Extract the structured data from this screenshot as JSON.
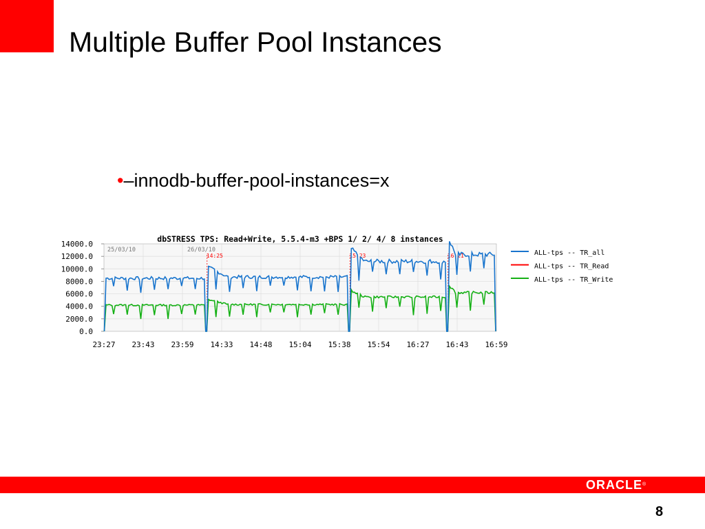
{
  "slide": {
    "title": "Multiple Buffer Pool Instances",
    "bullet_marker": "•",
    "bullet_text": "–innodb-buffer-pool-instances=x",
    "page_number": "8",
    "logo_text": "ORACLE",
    "logo_mark": "®"
  },
  "colors": {
    "accent": "#ff0000",
    "series_all": "#1874cd",
    "series_read": "#ff0000",
    "series_write": "#14b014",
    "marker_text": "#ff0000"
  },
  "chart_data": {
    "type": "line",
    "title": "dbSTRESS TPS: Read+Write, 5.5.4-m3 +BPS  1/ 2/ 4/ 8 instances",
    "yticks": [
      "14000.0",
      "12000.0",
      "10000.0",
      "8000.0",
      "6000.0",
      "4000.0",
      "2000.0",
      "0.0"
    ],
    "ylim": [
      0,
      14000
    ],
    "xticks": [
      "23:27",
      "23:43",
      "23:59",
      "14:33",
      "14:48",
      "15:04",
      "15:38",
      "15:54",
      "16:27",
      "16:43",
      "16:59"
    ],
    "date_labels": [
      "25/03/10",
      "26/03/10"
    ],
    "markers": [
      "14:25",
      "15:23",
      "16:21"
    ],
    "legend": [
      "ALL-tps -- TR_all",
      "ALL-tps -- TR_Read",
      "ALL-tps -- TR_Write"
    ],
    "grid": true,
    "segments": [
      {
        "instances": 1,
        "all_tps": 8500,
        "write_tps": 4200
      },
      {
        "instances": 2,
        "all_tps": 8700,
        "write_tps": 4300
      },
      {
        "instances": 4,
        "all_tps": 11200,
        "write_tps": 5500
      },
      {
        "instances": 8,
        "all_tps": 12300,
        "write_tps": 6200
      }
    ]
  }
}
